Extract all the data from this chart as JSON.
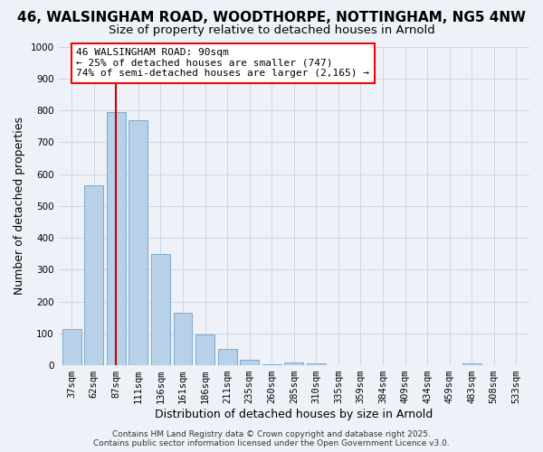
{
  "title": "46, WALSINGHAM ROAD, WOODTHORPE, NOTTINGHAM, NG5 4NW",
  "subtitle": "Size of property relative to detached houses in Arnold",
  "xlabel": "Distribution of detached houses by size in Arnold",
  "ylabel": "Number of detached properties",
  "bar_labels": [
    "37sqm",
    "62sqm",
    "87sqm",
    "111sqm",
    "136sqm",
    "161sqm",
    "186sqm",
    "211sqm",
    "235sqm",
    "260sqm",
    "285sqm",
    "310sqm",
    "335sqm",
    "359sqm",
    "384sqm",
    "409sqm",
    "434sqm",
    "459sqm",
    "483sqm",
    "508sqm",
    "533sqm"
  ],
  "bar_values": [
    115,
    565,
    795,
    770,
    350,
    165,
    97,
    52,
    17,
    2,
    10,
    5,
    0,
    0,
    0,
    0,
    0,
    0,
    5,
    0,
    0
  ],
  "bar_color": "#b8d0e8",
  "bar_edge_color": "#7aaacf",
  "vline_x_index": 2,
  "vline_color": "#cc0000",
  "annotation_line1": "46 WALSINGHAM ROAD: 90sqm",
  "annotation_line2": "← 25% of detached houses are smaller (747)",
  "annotation_line3": "74% of semi-detached houses are larger (2,165) →",
  "ylim": [
    0,
    1000
  ],
  "yticks": [
    0,
    100,
    200,
    300,
    400,
    500,
    600,
    700,
    800,
    900,
    1000
  ],
  "grid_color": "#ccd6e8",
  "bg_color": "#eef2f8",
  "footer_line1": "Contains HM Land Registry data © Crown copyright and database right 2025.",
  "footer_line2": "Contains public sector information licensed under the Open Government Licence v3.0.",
  "title_fontsize": 11,
  "subtitle_fontsize": 9.5,
  "axis_label_fontsize": 9,
  "tick_fontsize": 7.5,
  "annotation_fontsize": 8,
  "footer_fontsize": 6.5
}
